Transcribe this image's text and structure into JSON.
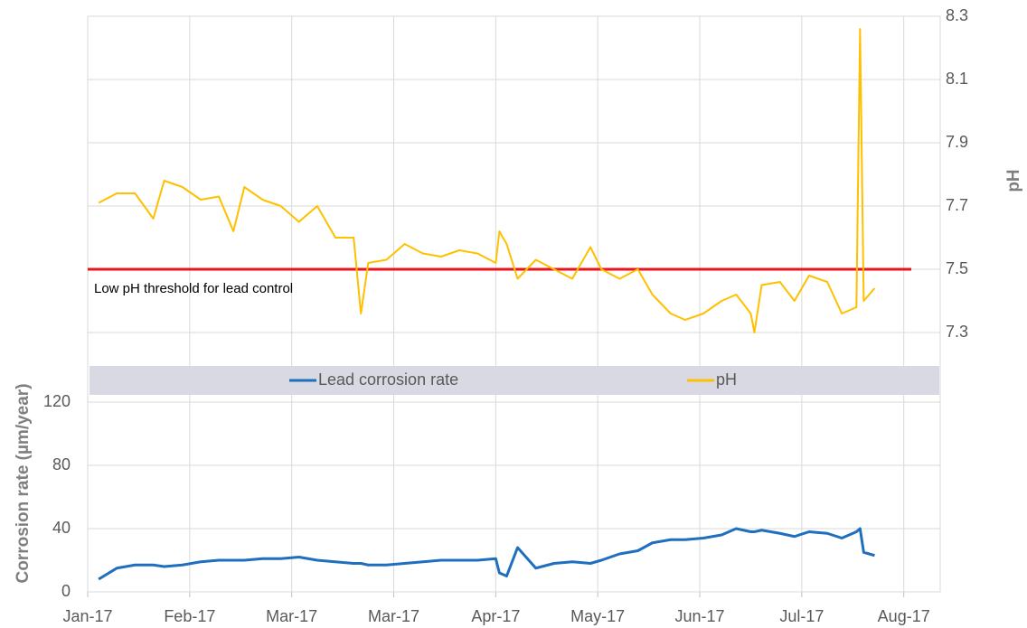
{
  "chart_data": {
    "type": "line",
    "x": [
      8,
      13,
      18,
      23,
      26,
      31,
      36,
      41,
      45,
      48,
      53,
      58,
      63,
      68,
      73,
      78,
      80,
      82,
      87,
      92,
      97,
      102,
      107,
      112,
      117,
      118,
      120,
      123,
      128,
      133,
      138,
      143,
      146,
      151,
      156,
      160,
      165,
      169,
      174,
      179,
      183,
      187,
      188,
      190,
      195,
      199,
      203,
      208,
      212,
      216,
      217,
      218,
      221
    ],
    "xlim": [
      5,
      239
    ],
    "xticks": [
      {
        "value": 5,
        "label": "Jan-17"
      },
      {
        "value": 33,
        "label": "Feb-17"
      },
      {
        "value": 61,
        "label": "Mar-17"
      },
      {
        "value": 89,
        "label": "Mar-17"
      },
      {
        "value": 117,
        "label": "Apr-17"
      },
      {
        "value": 145,
        "label": "May-17"
      },
      {
        "value": 173,
        "label": "Jun-17"
      },
      {
        "value": 201,
        "label": "Jul-17"
      },
      {
        "value": 229,
        "label": "Aug-17"
      }
    ],
    "ylabel": "Corrosion rate (µm/year)",
    "ylim": [
      0,
      364
    ],
    "yticks": [
      0,
      40,
      80,
      120
    ],
    "y2label": "pH",
    "y2lim": [
      6.48,
      8.3
    ],
    "y2ticks": [
      7.3,
      7.5,
      7.7,
      7.9,
      8.1,
      8.3
    ],
    "grid": true,
    "series": [
      {
        "name": "Lead corrosion rate",
        "color": "#1f6fbf",
        "values": [
          8,
          15,
          17,
          17,
          16,
          17,
          19,
          20,
          20,
          20,
          21,
          21,
          22,
          20,
          19,
          18,
          18,
          17,
          17,
          18,
          19,
          20,
          20,
          20,
          21,
          12,
          10,
          28,
          15,
          18,
          19,
          18,
          20,
          24,
          26,
          31,
          33,
          33,
          34,
          36,
          40,
          38,
          38,
          39,
          37,
          35,
          38,
          37,
          34,
          38,
          40,
          25,
          23
        ]
      },
      {
        "name": "pH",
        "color": "#ffc000",
        "axis": "y2",
        "values": [
          7.71,
          7.74,
          7.74,
          7.66,
          7.78,
          7.76,
          7.72,
          7.73,
          7.62,
          7.76,
          7.72,
          7.7,
          7.65,
          7.7,
          7.6,
          7.6,
          7.36,
          7.52,
          7.53,
          7.58,
          7.55,
          7.54,
          7.56,
          7.55,
          7.52,
          7.62,
          7.58,
          7.47,
          7.53,
          7.5,
          7.47,
          7.57,
          7.5,
          7.47,
          7.5,
          7.42,
          7.36,
          7.34,
          7.36,
          7.4,
          7.42,
          7.36,
          7.3,
          7.45,
          7.46,
          7.4,
          7.48,
          7.46,
          7.36,
          7.38,
          8.26,
          7.4,
          7.44
        ]
      }
    ],
    "threshold": {
      "value": 7.5,
      "label": "Low pH threshold for lead control",
      "color": "#e8141c"
    }
  }
}
